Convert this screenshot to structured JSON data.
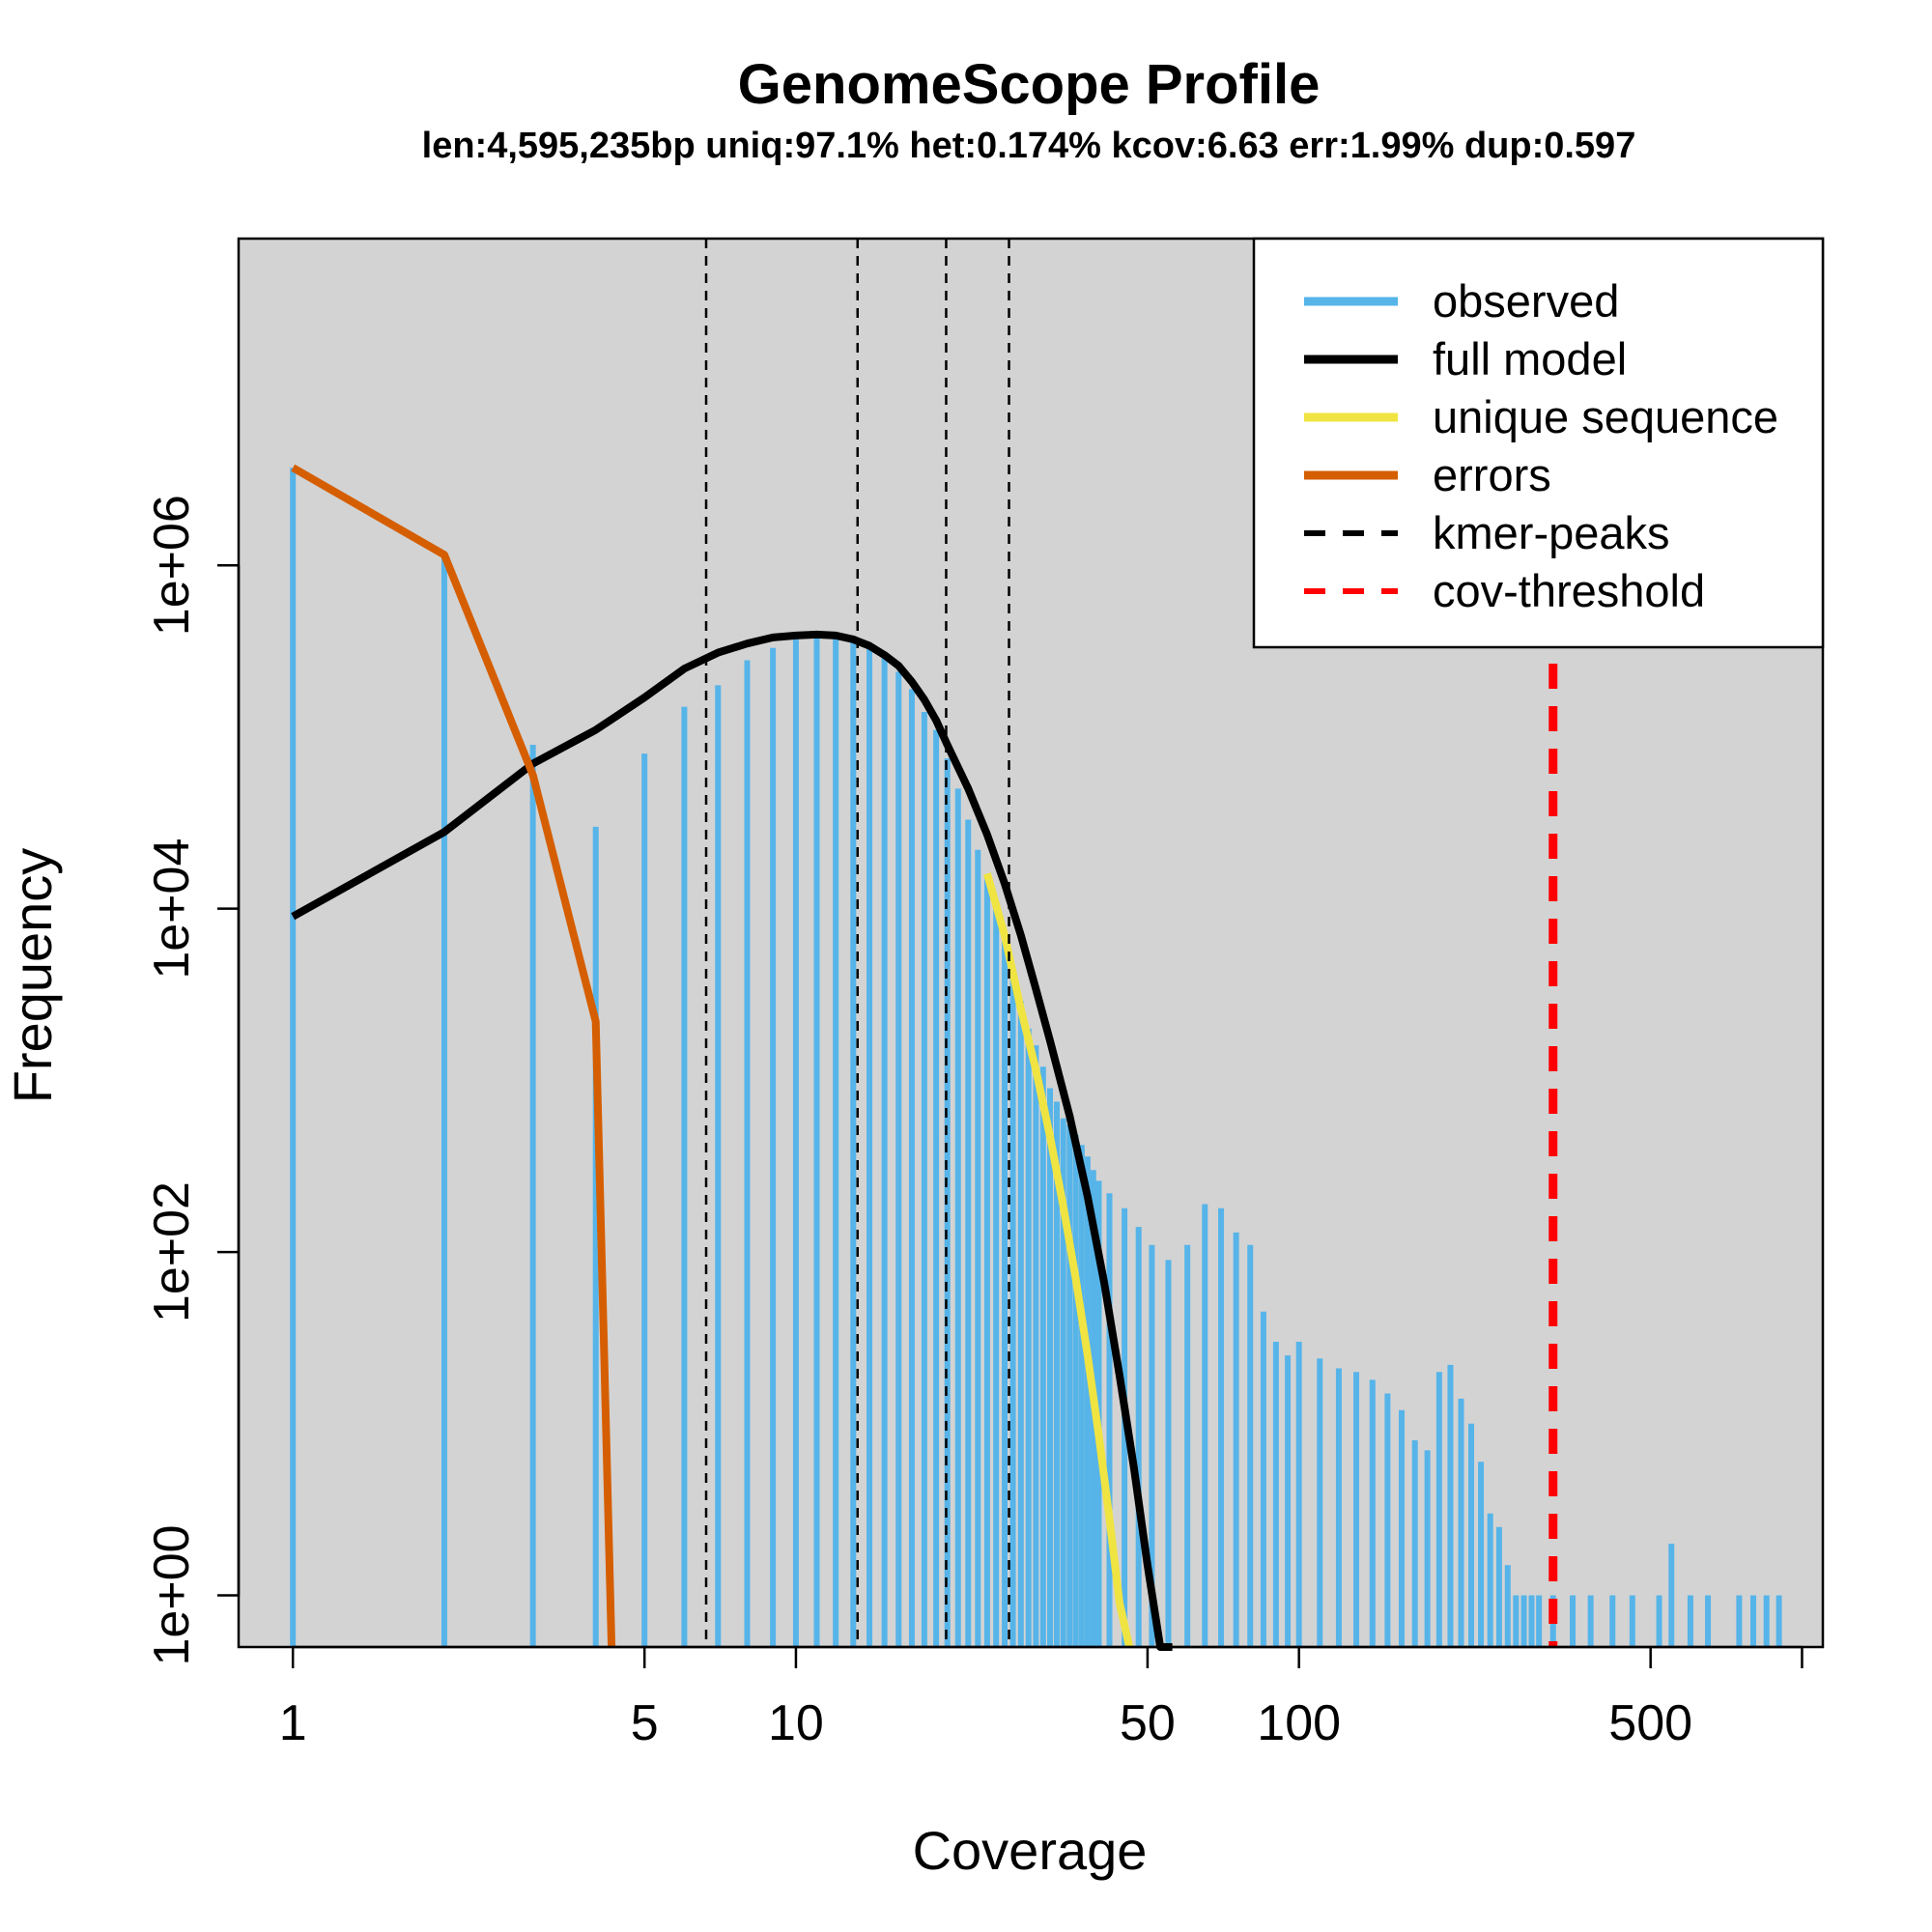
{
  "chart_data": {
    "type": "bar",
    "title": "GenomeScope Profile",
    "subtitle": "len:4,595,235bp uniq:97.1% het:0.174% kcov:6.63 err:1.99% dup:0.597",
    "xlabel": "Coverage",
    "ylabel": "Frequency",
    "x_scale": "log",
    "y_scale": "log",
    "xlim": [
      0.78,
      1100
    ],
    "ylim": [
      0.5,
      80000000
    ],
    "x_ticks": [
      1,
      5,
      10,
      50,
      100,
      500,
      1000
    ],
    "x_tick_labels": [
      "1",
      "5",
      "10",
      "50",
      "100",
      "500",
      ""
    ],
    "y_ticks": [
      1,
      100,
      10000,
      1000000
    ],
    "y_tick_labels": [
      "1e+00",
      "1e+02",
      "1e+04",
      "1e+06"
    ],
    "grid": false,
    "background": "#d3d3d3",
    "legend_position": "top-right",
    "legend": [
      {
        "label": "observed",
        "color": "#56b4e9",
        "style": "solid"
      },
      {
        "label": "full model",
        "color": "#000000",
        "style": "solid"
      },
      {
        "label": "unique sequence",
        "color": "#f0e442",
        "style": "solid"
      },
      {
        "label": "errors",
        "color": "#d55e00",
        "style": "solid"
      },
      {
        "label": "kmer-peaks",
        "color": "#000000",
        "style": "dashed"
      },
      {
        "label": "cov-threshold",
        "color": "#ff0000",
        "style": "dashed"
      }
    ],
    "series": [
      {
        "name": "observed",
        "kind": "bars",
        "color": "#56b4e9",
        "x": [
          1,
          2,
          3,
          4,
          5,
          6,
          7,
          8,
          9,
          10,
          11,
          12,
          13,
          14,
          15,
          16,
          17,
          18,
          19,
          20,
          21,
          22,
          23,
          24,
          25,
          26,
          27,
          28,
          29,
          30,
          31,
          32,
          33,
          34,
          35,
          36,
          37,
          38,
          39,
          40,
          42,
          45,
          48,
          51,
          55,
          60,
          65,
          70,
          75,
          80,
          85,
          90,
          95,
          100,
          110,
          120,
          130,
          140,
          150,
          160,
          170,
          180,
          190,
          200,
          210,
          220,
          230,
          240,
          250,
          260,
          270,
          280,
          290,
          300,
          320,
          350,
          380,
          420,
          460,
          520,
          550,
          600,
          650,
          750,
          800,
          850,
          900
        ],
        "values": [
          3700000,
          1100000,
          90000,
          30000,
          80000,
          150000,
          200000,
          280000,
          330000,
          370000,
          380000,
          380000,
          360000,
          330000,
          290000,
          240000,
          190000,
          140000,
          110000,
          75000,
          50000,
          33000,
          22000,
          15000,
          10000,
          6500,
          4300,
          2900,
          2000,
          1600,
          1200,
          900,
          750,
          600,
          550,
          480,
          420,
          360,
          300,
          260,
          220,
          180,
          140,
          110,
          90,
          110,
          190,
          180,
          130,
          110,
          45,
          30,
          25,
          30,
          24,
          21,
          20,
          18,
          15,
          12,
          8,
          7,
          20,
          22,
          14,
          10,
          6,
          3,
          2.5,
          1.5,
          1,
          1,
          1,
          1,
          1,
          1,
          1,
          1,
          1,
          1,
          2,
          1,
          1,
          1,
          1,
          1,
          1
        ]
      },
      {
        "name": "full model",
        "kind": "line",
        "color": "#000000",
        "x": [
          1,
          2,
          3,
          4,
          5,
          6,
          7,
          8,
          9,
          10,
          11,
          12,
          13,
          14,
          15,
          16,
          17,
          18,
          19,
          20,
          22,
          24,
          26,
          28,
          30,
          32,
          35,
          38,
          41,
          44,
          47,
          50,
          53,
          56
        ],
        "values": [
          9000,
          28000,
          70000,
          110000,
          170000,
          250000,
          310000,
          350000,
          380000,
          390000,
          395000,
          390000,
          370000,
          340000,
          300000,
          260000,
          210000,
          165000,
          125000,
          90000,
          50000,
          27000,
          14000,
          7000,
          3400,
          1700,
          620,
          210,
          66,
          19,
          5.5,
          1.5,
          0.5,
          0.1
        ]
      },
      {
        "name": "unique sequence",
        "kind": "line",
        "color": "#f0e442",
        "x": [
          24,
          26,
          28,
          30,
          32,
          34,
          36,
          38,
          40,
          42,
          44,
          46
        ],
        "values": [
          16000,
          7000,
          2600,
          1150,
          470,
          185,
          70,
          25,
          8.5,
          2.8,
          0.9,
          0.28
        ]
      },
      {
        "name": "errors",
        "kind": "line",
        "color": "#d55e00",
        "x": [
          1,
          2,
          3,
          4,
          4.3
        ],
        "values": [
          3700000,
          1150000,
          60000,
          2200,
          0.2
        ]
      }
    ],
    "kmer_peaks": [
      6.63,
      13.26,
      19.89,
      26.52
    ],
    "cov_threshold": 320
  }
}
